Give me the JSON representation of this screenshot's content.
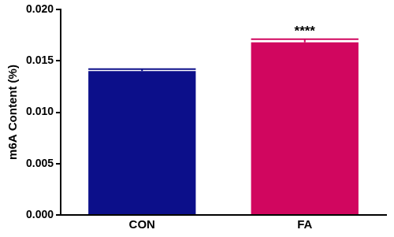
{
  "chart_data": {
    "type": "bar",
    "y_label": "m6A Content (%)",
    "categories": [
      "CON",
      "FA"
    ],
    "values": [
      0.014,
      0.0168
    ],
    "errors": [
      0.0002,
      0.0003
    ],
    "colors": [
      "#0c0f8a",
      "#d1065f"
    ],
    "ylim": [
      0,
      0.02
    ],
    "yticks": [
      {
        "value": 0,
        "label": "0.000"
      },
      {
        "value": 0.005,
        "label": "0.005"
      },
      {
        "value": 0.01,
        "label": "0.010"
      },
      {
        "value": 0.015,
        "label": "0.015"
      },
      {
        "value": 0.02,
        "label": "0.020"
      }
    ],
    "annotations": [
      {
        "category": "FA",
        "text": "****"
      }
    ],
    "grid": false
  }
}
